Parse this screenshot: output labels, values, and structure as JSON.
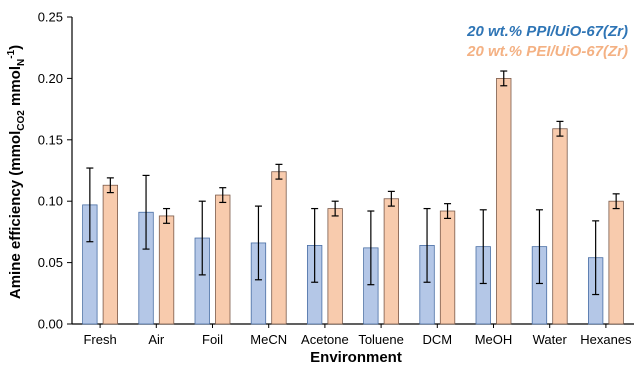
{
  "chart_data": {
    "type": "bar",
    "categories": [
      "Fresh",
      "Air",
      "Foil",
      "MeCN",
      "Acetone",
      "Toluene",
      "DCM",
      "MeOH",
      "Water",
      "Hexanes"
    ],
    "series": [
      {
        "name": "20 wt.% PPI/UiO-67(Zr)",
        "color": "#b4c7e7",
        "edge": "#4a6fa5",
        "legend_color": "#2e75b6",
        "values": [
          0.097,
          0.091,
          0.07,
          0.066,
          0.064,
          0.062,
          0.064,
          0.063,
          0.063,
          0.054
        ],
        "errors": [
          0.03,
          0.03,
          0.03,
          0.03,
          0.03,
          0.03,
          0.03,
          0.03,
          0.03,
          0.03
        ]
      },
      {
        "name": "20 wt.% PEI/UiO-67(Zr)",
        "color": "#f8cbad",
        "edge": "#7a5a4a",
        "legend_color": "#f4b183",
        "values": [
          0.113,
          0.088,
          0.105,
          0.124,
          0.094,
          0.102,
          0.092,
          0.2,
          0.159,
          0.1
        ],
        "errors": [
          0.006,
          0.006,
          0.006,
          0.006,
          0.006,
          0.006,
          0.006,
          0.006,
          0.006,
          0.006
        ]
      }
    ],
    "xlabel": "Environment",
    "ylabel_main": "Amine efficiency (mmol",
    "ylabel_sub1": "CO2",
    "ylabel_mid": " mmol",
    "ylabel_sub2": "N",
    "ylabel_sup": "-1",
    "ylabel_end": ")",
    "ylim": [
      0.0,
      0.25
    ],
    "yticks": [
      "0.00",
      "0.05",
      "0.10",
      "0.15",
      "0.20",
      "0.25"
    ],
    "grid": false,
    "legend_position": "top-right"
  }
}
